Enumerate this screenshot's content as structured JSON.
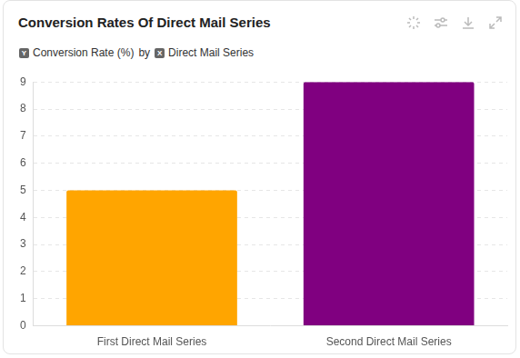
{
  "chart_data": {
    "type": "bar",
    "title": "Conversion Rates Of Direct Mail Series",
    "caption": [
      {
        "badge": "Y",
        "text": "Conversion Rate (%)"
      },
      {
        "text": "by"
      },
      {
        "badge": "X",
        "text": "Direct Mail Series"
      }
    ],
    "categories": [
      "First Direct Mail Series",
      "Second Direct Mail Series"
    ],
    "values": [
      5,
      9
    ],
    "colors": [
      "#FFA500",
      "#800080"
    ],
    "ylim": [
      0,
      9
    ],
    "yticks": [
      0,
      1,
      2,
      3,
      4,
      5,
      6,
      7,
      8,
      9
    ],
    "grid": true
  }
}
